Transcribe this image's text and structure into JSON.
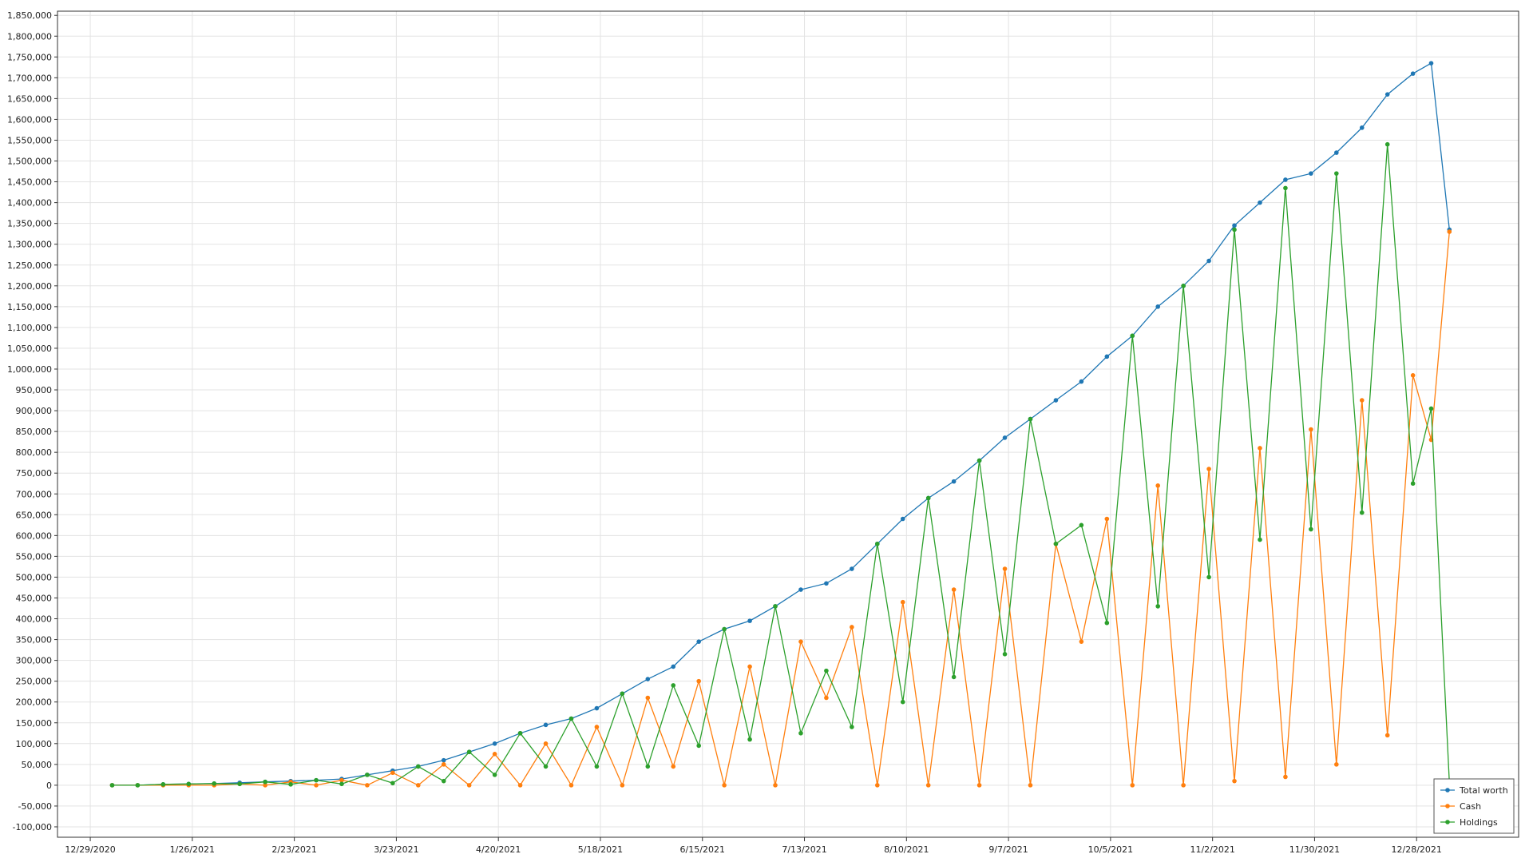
{
  "chart_data": {
    "type": "line",
    "title": "",
    "xlabel": "",
    "ylabel": "",
    "x_ticks": [
      "12/29/2020",
      "1/26/2021",
      "2/23/2021",
      "3/23/2021",
      "4/20/2021",
      "5/18/2021",
      "6/15/2021",
      "7/13/2021",
      "8/10/2021",
      "9/7/2021",
      "10/5/2021",
      "11/2/2021",
      "11/30/2021",
      "12/28/2021"
    ],
    "x_range": [
      "2020-12-20",
      "2022-01-25"
    ],
    "ylim": [
      -125000,
      1860000
    ],
    "y_tick_step": 50000,
    "y_tick_labels": [
      "-100,000",
      "-50,000",
      "0",
      "50,000",
      "100,000",
      "150,000",
      "200,000",
      "250,000",
      "300,000",
      "350,000",
      "400,000",
      "450,000",
      "500,000",
      "550,000",
      "600,000",
      "650,000",
      "700,000",
      "750,000",
      "800,000",
      "850,000",
      "900,000",
      "950,000",
      "1,000,000",
      "1,050,000",
      "1,100,000",
      "1,150,000",
      "1,200,000",
      "1,250,000",
      "1,300,000",
      "1,350,000",
      "1,400,000",
      "1,450,000",
      "1,500,000",
      "1,550,000",
      "1,600,000",
      "1,650,000",
      "1,700,000",
      "1,750,000",
      "1,800,000",
      "1,850,000"
    ],
    "grid": true,
    "legend_position": "bottom-right",
    "series": [
      {
        "name": "Total worth",
        "color": "#1f77b4",
        "points": [
          [
            "2021-01-04",
            0
          ],
          [
            "2021-01-11",
            0
          ],
          [
            "2021-01-18",
            2000
          ],
          [
            "2021-01-25",
            3000
          ],
          [
            "2021-02-01",
            4000
          ],
          [
            "2021-02-08",
            6000
          ],
          [
            "2021-02-15",
            8000
          ],
          [
            "2021-02-22",
            10000
          ],
          [
            "2021-03-01",
            12000
          ],
          [
            "2021-03-08",
            15000
          ],
          [
            "2021-03-15",
            25000
          ],
          [
            "2021-03-22",
            35000
          ],
          [
            "2021-03-29",
            45000
          ],
          [
            "2021-04-05",
            60000
          ],
          [
            "2021-04-12",
            80000
          ],
          [
            "2021-04-19",
            100000
          ],
          [
            "2021-04-26",
            125000
          ],
          [
            "2021-05-03",
            145000
          ],
          [
            "2021-05-10",
            160000
          ],
          [
            "2021-05-17",
            185000
          ],
          [
            "2021-05-24",
            220000
          ],
          [
            "2021-05-31",
            255000
          ],
          [
            "2021-06-07",
            285000
          ],
          [
            "2021-06-14",
            345000
          ],
          [
            "2021-06-21",
            375000
          ],
          [
            "2021-06-28",
            395000
          ],
          [
            "2021-07-05",
            430000
          ],
          [
            "2021-07-12",
            470000
          ],
          [
            "2021-07-19",
            485000
          ],
          [
            "2021-07-26",
            520000
          ],
          [
            "2021-08-02",
            580000
          ],
          [
            "2021-08-09",
            640000
          ],
          [
            "2021-08-16",
            690000
          ],
          [
            "2021-08-23",
            730000
          ],
          [
            "2021-08-30",
            780000
          ],
          [
            "2021-09-06",
            835000
          ],
          [
            "2021-09-13",
            880000
          ],
          [
            "2021-09-20",
            925000
          ],
          [
            "2021-09-27",
            970000
          ],
          [
            "2021-10-04",
            1030000
          ],
          [
            "2021-10-11",
            1080000
          ],
          [
            "2021-10-18",
            1150000
          ],
          [
            "2021-10-25",
            1200000
          ],
          [
            "2021-11-01",
            1260000
          ],
          [
            "2021-11-08",
            1345000
          ],
          [
            "2021-11-15",
            1400000
          ],
          [
            "2021-11-22",
            1455000
          ],
          [
            "2021-11-29",
            1470000
          ],
          [
            "2021-12-06",
            1520000
          ],
          [
            "2021-12-13",
            1580000
          ],
          [
            "2021-12-20",
            1660000
          ],
          [
            "2021-12-27",
            1710000
          ],
          [
            "2022-01-01",
            1735000
          ],
          [
            "2022-01-06",
            1335000
          ]
        ]
      },
      {
        "name": "Cash",
        "color": "#ff7f0e",
        "points": [
          [
            "2021-01-04",
            0
          ],
          [
            "2021-01-11",
            0
          ],
          [
            "2021-01-18",
            0
          ],
          [
            "2021-01-25",
            0
          ],
          [
            "2021-02-01",
            0
          ],
          [
            "2021-02-08",
            3000
          ],
          [
            "2021-02-15",
            0
          ],
          [
            "2021-02-22",
            8000
          ],
          [
            "2021-03-01",
            0
          ],
          [
            "2021-03-08",
            12000
          ],
          [
            "2021-03-15",
            0
          ],
          [
            "2021-03-22",
            30000
          ],
          [
            "2021-03-29",
            0
          ],
          [
            "2021-04-05",
            50000
          ],
          [
            "2021-04-12",
            0
          ],
          [
            "2021-04-19",
            75000
          ],
          [
            "2021-04-26",
            0
          ],
          [
            "2021-05-03",
            100000
          ],
          [
            "2021-05-10",
            0
          ],
          [
            "2021-05-17",
            140000
          ],
          [
            "2021-05-24",
            0
          ],
          [
            "2021-05-31",
            210000
          ],
          [
            "2021-06-07",
            45000
          ],
          [
            "2021-06-14",
            250000
          ],
          [
            "2021-06-21",
            0
          ],
          [
            "2021-06-28",
            285000
          ],
          [
            "2021-07-05",
            0
          ],
          [
            "2021-07-12",
            345000
          ],
          [
            "2021-07-19",
            210000
          ],
          [
            "2021-07-26",
            380000
          ],
          [
            "2021-08-02",
            0
          ],
          [
            "2021-08-09",
            440000
          ],
          [
            "2021-08-16",
            0
          ],
          [
            "2021-08-23",
            470000
          ],
          [
            "2021-08-30",
            0
          ],
          [
            "2021-09-06",
            520000
          ],
          [
            "2021-09-13",
            0
          ],
          [
            "2021-09-20",
            580000
          ],
          [
            "2021-09-27",
            345000
          ],
          [
            "2021-10-04",
            640000
          ],
          [
            "2021-10-11",
            0
          ],
          [
            "2021-10-18",
            720000
          ],
          [
            "2021-10-25",
            0
          ],
          [
            "2021-11-01",
            760000
          ],
          [
            "2021-11-08",
            10000
          ],
          [
            "2021-11-15",
            810000
          ],
          [
            "2021-11-22",
            20000
          ],
          [
            "2021-11-29",
            855000
          ],
          [
            "2021-12-06",
            50000
          ],
          [
            "2021-12-13",
            925000
          ],
          [
            "2021-12-20",
            120000
          ],
          [
            "2021-12-27",
            985000
          ],
          [
            "2022-01-01",
            830000
          ],
          [
            "2022-01-06",
            1330000
          ]
        ]
      },
      {
        "name": "Holdings",
        "color": "#2ca02c",
        "points": [
          [
            "2021-01-04",
            0
          ],
          [
            "2021-01-11",
            0
          ],
          [
            "2021-01-18",
            2000
          ],
          [
            "2021-01-25",
            3000
          ],
          [
            "2021-02-01",
            4000
          ],
          [
            "2021-02-08",
            3000
          ],
          [
            "2021-02-15",
            8000
          ],
          [
            "2021-02-22",
            2000
          ],
          [
            "2021-03-01",
            12000
          ],
          [
            "2021-03-08",
            3000
          ],
          [
            "2021-03-15",
            25000
          ],
          [
            "2021-03-22",
            5000
          ],
          [
            "2021-03-29",
            45000
          ],
          [
            "2021-04-05",
            10000
          ],
          [
            "2021-04-12",
            80000
          ],
          [
            "2021-04-19",
            25000
          ],
          [
            "2021-04-26",
            125000
          ],
          [
            "2021-05-03",
            45000
          ],
          [
            "2021-05-10",
            160000
          ],
          [
            "2021-05-17",
            45000
          ],
          [
            "2021-05-24",
            220000
          ],
          [
            "2021-05-31",
            45000
          ],
          [
            "2021-06-07",
            240000
          ],
          [
            "2021-06-14",
            95000
          ],
          [
            "2021-06-21",
            375000
          ],
          [
            "2021-06-28",
            110000
          ],
          [
            "2021-07-05",
            430000
          ],
          [
            "2021-07-12",
            125000
          ],
          [
            "2021-07-19",
            275000
          ],
          [
            "2021-07-26",
            140000
          ],
          [
            "2021-08-02",
            580000
          ],
          [
            "2021-08-09",
            200000
          ],
          [
            "2021-08-16",
            690000
          ],
          [
            "2021-08-23",
            260000
          ],
          [
            "2021-08-30",
            780000
          ],
          [
            "2021-09-06",
            315000
          ],
          [
            "2021-09-13",
            880000
          ],
          [
            "2021-09-20",
            580000
          ],
          [
            "2021-09-27",
            625000
          ],
          [
            "2021-10-04",
            390000
          ],
          [
            "2021-10-11",
            1080000
          ],
          [
            "2021-10-18",
            430000
          ],
          [
            "2021-10-25",
            1200000
          ],
          [
            "2021-11-01",
            500000
          ],
          [
            "2021-11-08",
            1335000
          ],
          [
            "2021-11-15",
            590000
          ],
          [
            "2021-11-22",
            1435000
          ],
          [
            "2021-11-29",
            615000
          ],
          [
            "2021-12-06",
            1470000
          ],
          [
            "2021-12-13",
            655000
          ],
          [
            "2021-12-20",
            1540000
          ],
          [
            "2021-12-27",
            725000
          ],
          [
            "2022-01-01",
            905000
          ],
          [
            "2022-01-06",
            5000
          ]
        ]
      }
    ]
  }
}
